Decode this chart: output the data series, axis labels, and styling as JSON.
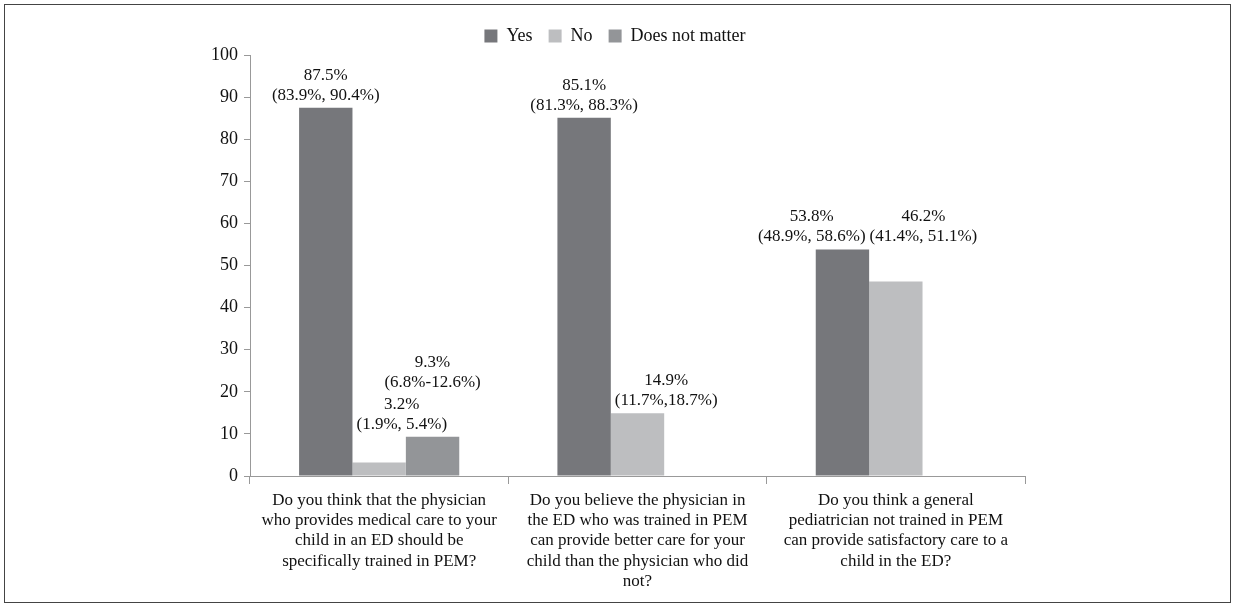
{
  "chart_data": {
    "type": "bar",
    "categories": [
      "Do you think that the physician who provides medical care to your child in an ED should be specifically trained in PEM?",
      "Do you believe the physician in the ED who was trained in PEM can provide better care for your child than the physician who did not?",
      "Do you think a general pediatrician not trained in PEM can provide satisfactory care to a child in the ED?"
    ],
    "series": [
      {
        "name": "Yes",
        "color": "#76777b",
        "values": [
          87.5,
          85.1,
          53.8
        ],
        "value_labels": [
          "87.5%\n(83.9%, 90.4%)",
          "85.1%\n(81.3%, 88.3%)",
          "53.8%\n(48.9%, 58.6%)"
        ]
      },
      {
        "name": "No",
        "color": "#bdbec0",
        "values": [
          3.2,
          14.9,
          46.2
        ],
        "value_labels": [
          "3.2%\n(1.9%, 5.4%)",
          "14.9%\n(11.7%,18.7%)",
          "46.2%\n(41.4%, 51.1%)"
        ]
      },
      {
        "name": "Does not matter",
        "color": "#939598",
        "values": [
          9.3,
          null,
          null
        ],
        "value_labels": [
          "9.3%\n(6.8%-12.6%)",
          null,
          null
        ]
      }
    ],
    "ylim": [
      0,
      100
    ],
    "yticks": [
      0,
      10,
      20,
      30,
      40,
      50,
      60,
      70,
      80,
      90,
      100
    ],
    "grid": false,
    "legend": "top"
  }
}
